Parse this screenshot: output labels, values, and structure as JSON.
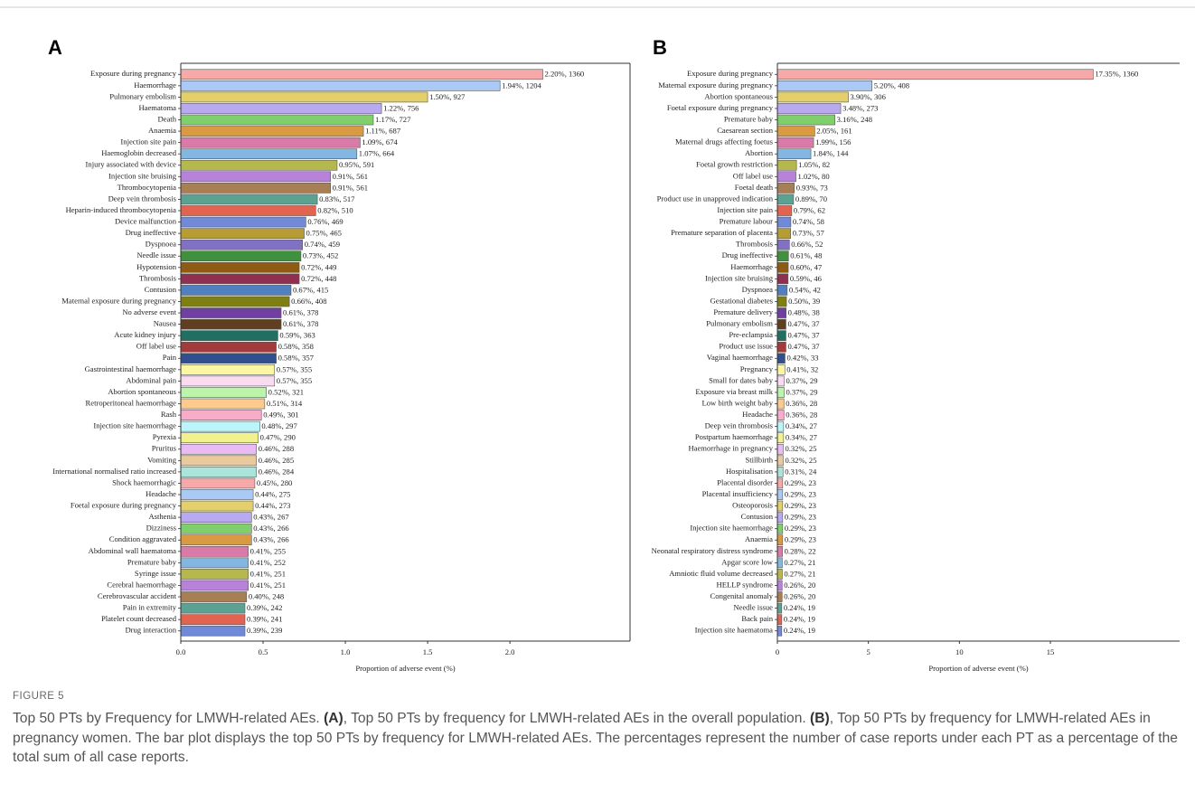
{
  "chart_data": [
    {
      "type": "barh",
      "panel": "A",
      "x_label": "Proportion of adverse event (%)",
      "categories": [
        "Exposure during pregnancy",
        "Haemorrhage",
        "Pulmonary embolism",
        "Haematoma",
        "Death",
        "Anaemia",
        "Injection site pain",
        "Haemoglobin decreased",
        "Injury associated with device",
        "Injection site bruising",
        "Thrombocytopenia",
        "Deep vein thrombosis",
        "Heparin-induced thrombocytopenia",
        "Device malfunction",
        "Drug ineffective",
        "Dyspnoea",
        "Needle issue",
        "Hypotension",
        "Thrombosis",
        "Contusion",
        "Maternal exposure during pregnancy",
        "No adverse event",
        "Nausea",
        "Acute kidney injury",
        "Off label use",
        "Pain",
        "Gastrointestinal haemorrhage",
        "Abdominal pain",
        "Abortion spontaneous",
        "Retroperitoneal haemorrhage",
        "Rash",
        "Injection site haemorrhage",
        "Pyrexia",
        "Pruritus",
        "Vomiting",
        "International normalised ratio increased",
        "Shock haemorrhagic",
        "Headache",
        "Foetal exposure during pregnancy",
        "Asthenia",
        "Dizziness",
        "Condition aggravated",
        "Abdominal wall haematoma",
        "Premature baby",
        "Syringe issue",
        "Cerebral haemorrhage",
        "Cerebrovascular accident",
        "Pain in extremity",
        "Platelet count decreased",
        "Drug interaction"
      ],
      "values": [
        2.2,
        1.94,
        1.5,
        1.22,
        1.17,
        1.11,
        1.09,
        1.07,
        0.95,
        0.91,
        0.91,
        0.83,
        0.82,
        0.76,
        0.75,
        0.74,
        0.73,
        0.72,
        0.72,
        0.67,
        0.66,
        0.61,
        0.61,
        0.59,
        0.58,
        0.58,
        0.57,
        0.57,
        0.52,
        0.51,
        0.49,
        0.48,
        0.47,
        0.46,
        0.46,
        0.46,
        0.45,
        0.44,
        0.44,
        0.43,
        0.43,
        0.43,
        0.41,
        0.41,
        0.41,
        0.41,
        0.4,
        0.39,
        0.39,
        0.39
      ],
      "value_labels": [
        "2.20%, 1360",
        "1.94%, 1204",
        "1.50%, 927",
        "1.22%, 756",
        "1.17%, 727",
        "1.11%, 687",
        "1.09%, 674",
        "1.07%, 664",
        "0.95%, 591",
        "0.91%, 561",
        "0.91%, 561",
        "0.83%, 517",
        "0.82%, 510",
        "0.76%, 469",
        "0.75%, 465",
        "0.74%, 459",
        "0.73%, 452",
        "0.72%, 449",
        "0.72%, 448",
        "0.67%, 415",
        "0.66%, 408",
        "0.61%, 378",
        "0.61%, 378",
        "0.59%, 363",
        "0.58%, 358",
        "0.58%, 357",
        "0.57%, 355",
        "0.57%, 355",
        "0.52%, 321",
        "0.51%, 314",
        "0.49%, 301",
        "0.48%, 297",
        "0.47%, 290",
        "0.46%, 288",
        "0.46%, 285",
        "0.46%, 284",
        "0.45%, 280",
        "0.44%, 275",
        "0.44%, 273",
        "0.43%, 267",
        "0.43%, 266",
        "0.43%, 266",
        "0.41%, 255",
        "0.41%, 252",
        "0.41%, 251",
        "0.41%, 251",
        "0.40%, 248",
        "0.39%, 242",
        "0.39%, 241",
        "0.39%, 239"
      ],
      "colors": [
        "#f7a8a8",
        "#abc9f5",
        "#e3cf6c",
        "#b9a9f0",
        "#7fcf6c",
        "#d99a42",
        "#d97aa9",
        "#84b6e2",
        "#b5b84c",
        "#b982da",
        "#a87e54",
        "#5ba292",
        "#e2634f",
        "#7089d8",
        "#b69c32",
        "#8171c2",
        "#3f903f",
        "#8f5b12",
        "#8f3050",
        "#5080c0",
        "#7f7f12",
        "#6f40a0",
        "#5f3f20",
        "#206f60",
        "#a23b3b",
        "#304f8f",
        "#fbf6a0",
        "#f9dcf1",
        "#bbf5aa",
        "#fbca8c",
        "#f9abca",
        "#bbf4f9",
        "#f2f28c",
        "#eabaf5",
        "#eaca9c",
        "#abe5d9"
      ],
      "xlim": [
        0,
        2.73
      ],
      "xticks": [
        {
          "value": 0,
          "label": "0.0"
        },
        0.5,
        {
          "value": 1,
          "label": "1.0"
        },
        1.5,
        {
          "value": 2,
          "label": "2.0"
        }
      ]
    },
    {
      "type": "barh",
      "panel": "B",
      "x_label": "Proportion of adverse event (%)",
      "categories": [
        "Exposure during pregnancy",
        "Maternal exposure during pregnancy",
        "Abortion spontaneous",
        "Foetal exposure during pregnancy",
        "Premature baby",
        "Caesarean section",
        "Maternal drugs affecting foetus",
        "Abortion",
        "Foetal growth restriction",
        "Off label use",
        "Foetal death",
        "Product use in unapproved indication",
        "Injection site pain",
        "Premature labour",
        "Premature separation of placenta",
        "Thrombosis",
        "Drug ineffective",
        "Haemorrhage",
        "Injection site bruising",
        "Dyspnoea",
        "Gestational diabetes",
        "Premature delivery",
        "Pulmonary embolism",
        "Pre-eclampsia",
        "Product use issue",
        "Vaginal haemorrhage",
        "Pregnancy",
        "Small for dates baby",
        "Exposure via breast milk",
        "Low birth weight baby",
        "Headache",
        "Deep vein thrombosis",
        "Postpartum haemorrhage",
        "Haemorrhage in pregnancy",
        "Stillbirth",
        "Hospitalisation",
        "Placental disorder",
        "Placental insufficiency",
        "Osteoporosis",
        "Contusion",
        "Injection site haemorrhage",
        "Anaemia",
        "Neonatal respiratory distress syndrome",
        "Apgar score low",
        "Amniotic fluid volume decreased",
        "HELLP syndrome",
        "Congenital anomaly",
        "Needle issue",
        "Back pain",
        "Injection site haematoma"
      ],
      "values": [
        17.35,
        5.2,
        3.9,
        3.48,
        3.16,
        2.05,
        1.99,
        1.84,
        1.05,
        1.02,
        0.93,
        0.89,
        0.79,
        0.74,
        0.73,
        0.66,
        0.61,
        0.6,
        0.59,
        0.54,
        0.5,
        0.48,
        0.47,
        0.47,
        0.47,
        0.42,
        0.41,
        0.37,
        0.37,
        0.36,
        0.36,
        0.34,
        0.34,
        0.32,
        0.32,
        0.31,
        0.29,
        0.29,
        0.29,
        0.29,
        0.29,
        0.29,
        0.28,
        0.27,
        0.27,
        0.26,
        0.26,
        0.24,
        0.24,
        0.24
      ],
      "value_labels": [
        "17.35%, 1360",
        "5.20%, 408",
        "3.90%, 306",
        "3.48%, 273",
        "3.16%, 248",
        "2.05%, 161",
        "1.99%, 156",
        "1.84%, 144",
        "1.05%, 82",
        "1.02%, 80",
        "0.93%, 73",
        "0.89%, 70",
        "0.79%, 62",
        "0.74%, 58",
        "0.73%, 57",
        "0.66%, 52",
        "0.61%, 48",
        "0.60%, 47",
        "0.59%, 46",
        "0.54%, 42",
        "0.50%, 39",
        "0.48%, 38",
        "0.47%, 37",
        "0.47%, 37",
        "0.47%, 37",
        "0.42%, 33",
        "0.41%, 32",
        "0.37%, 29",
        "0.37%, 29",
        "0.36%, 28",
        "0.36%, 28",
        "0.34%, 27",
        "0.34%, 27",
        "0.32%, 25",
        "0.32%, 25",
        "0.31%, 24",
        "0.29%, 23",
        "0.29%, 23",
        "0.29%, 23",
        "0.29%, 23",
        "0.29%, 23",
        "0.29%, 23",
        "0.28%, 22",
        "0.27%, 21",
        "0.27%, 21",
        "0.26%, 20",
        "0.26%, 20",
        "0.24%, 19",
        "0.24%, 19",
        "0.24%, 19"
      ],
      "colors": [
        "#f7a8a8",
        "#abc9f5",
        "#e3cf6c",
        "#b9a9f0",
        "#7fcf6c",
        "#d99a42",
        "#d97aa9",
        "#84b6e2",
        "#b5b84c",
        "#b982da",
        "#a87e54",
        "#5ba292",
        "#e2634f",
        "#7089d8",
        "#b69c32",
        "#8171c2",
        "#3f903f",
        "#8f5b12",
        "#8f3050",
        "#5080c0",
        "#7f7f12",
        "#6f40a0",
        "#5f3f20",
        "#206f60",
        "#a23b3b",
        "#304f8f",
        "#fbf6a0",
        "#f9dcf1",
        "#bbf5aa",
        "#fbca8c",
        "#f9abca",
        "#bbf4f9",
        "#f2f28c",
        "#eabaf5",
        "#eaca9c",
        "#abe5d9"
      ],
      "xlim": [
        0,
        22.1
      ],
      "xticks": [
        0,
        5,
        10,
        15
      ]
    }
  ],
  "caption": {
    "label": "FIGURE 5",
    "segments": [
      {
        "text": "Top 50 PTs by Frequency for LMWH-related AEs. "
      },
      {
        "text": "(A)",
        "bold": true
      },
      {
        "text": ", Top 50 PTs by frequency for LMWH-related AEs in the overall population. "
      },
      {
        "text": "(B)",
        "bold": true
      },
      {
        "text": ", Top 50 PTs by frequency for LMWH-related AEs in pregnancy women. The bar plot displays the top 50 PTs by frequency for LMWH-related AEs. The percentages represent the number of case reports under each PT as a percentage of the total sum of all case reports."
      }
    ]
  }
}
